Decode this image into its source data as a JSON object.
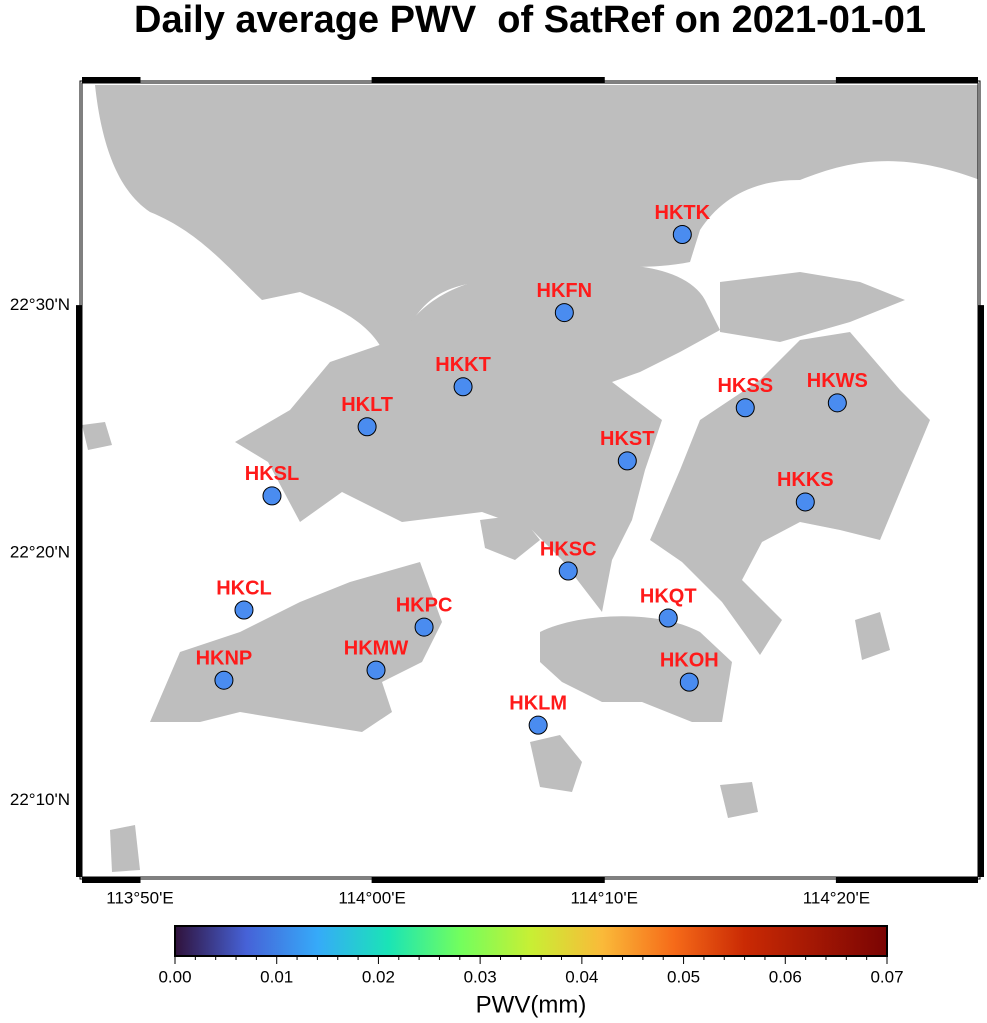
{
  "title": "Daily average PWV  of SatRef on 2021-01-01",
  "map": {
    "xlim": [
      113.7917,
      114.435
    ],
    "ylim": [
      22.115,
      22.65
    ],
    "xticks": [
      {
        "value": 113.833333,
        "label": "113°50'E"
      },
      {
        "value": 114.0,
        "label": "114°00'E"
      },
      {
        "value": 114.166667,
        "label": "114°10'E"
      },
      {
        "value": 114.333333,
        "label": "114°20'E"
      }
    ],
    "yticks": [
      {
        "value": 22.5,
        "label": "22°30'N"
      },
      {
        "value": 22.333333,
        "label": "22°20'N"
      },
      {
        "value": 22.166667,
        "label": "22°10'N"
      }
    ],
    "marker_color": "#4a8cf0",
    "label_color": "#ff1a1a",
    "stations": [
      {
        "name": "HKTK",
        "lon": 114.2227,
        "lat": 22.5479
      },
      {
        "name": "HKFN",
        "lon": 114.138,
        "lat": 22.4953
      },
      {
        "name": "HKKT",
        "lon": 114.0653,
        "lat": 22.4453
      },
      {
        "name": "HKLT",
        "lon": 113.9964,
        "lat": 22.4184
      },
      {
        "name": "HKSS",
        "lon": 114.2679,
        "lat": 22.4312
      },
      {
        "name": "HKWS",
        "lon": 114.334,
        "lat": 22.4345
      },
      {
        "name": "HKST",
        "lon": 114.1832,
        "lat": 22.3954
      },
      {
        "name": "HKSL",
        "lon": 113.9281,
        "lat": 22.3718
      },
      {
        "name": "HKKS",
        "lon": 114.311,
        "lat": 22.3677
      },
      {
        "name": "HKSC",
        "lon": 114.1408,
        "lat": 22.3212
      },
      {
        "name": "HKCL",
        "lon": 113.908,
        "lat": 22.2949
      },
      {
        "name": "HKQT",
        "lon": 114.2126,
        "lat": 22.2895
      },
      {
        "name": "HKPC",
        "lon": 114.0373,
        "lat": 22.2834
      },
      {
        "name": "HKMW",
        "lon": 114.0028,
        "lat": 22.2544
      },
      {
        "name": "HKNP",
        "lon": 113.8936,
        "lat": 22.2476
      },
      {
        "name": "HKOH",
        "lon": 114.2277,
        "lat": 22.2463
      },
      {
        "name": "HKLM",
        "lon": 114.1192,
        "lat": 22.2173
      }
    ]
  },
  "colorbar": {
    "label": "PWV(mm)",
    "lim": [
      0,
      0.07
    ],
    "ticks": [
      {
        "value": 0,
        "label": "0.00"
      },
      0.01,
      0.02,
      0.03,
      0.04,
      0.05,
      0.06,
      0.07
    ]
  }
}
